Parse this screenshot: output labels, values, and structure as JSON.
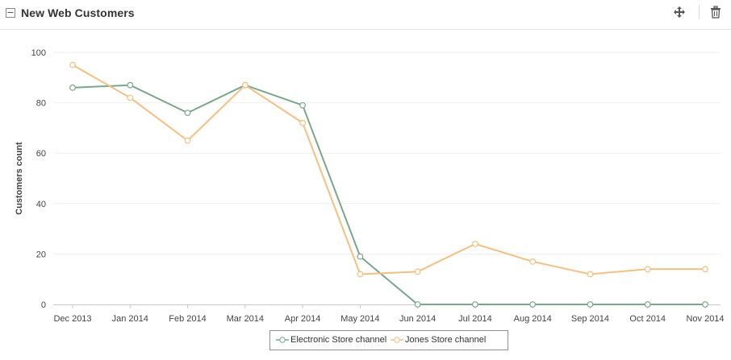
{
  "header": {
    "title": "New Web Customers",
    "collapse_label": "−",
    "move_icon": "move-arrows-icon",
    "delete_icon": "trash-icon"
  },
  "chart_data": {
    "type": "line",
    "title": "",
    "xlabel": "",
    "ylabel": "Customers count",
    "categories": [
      "Dec 2013",
      "Jan 2014",
      "Feb 2014",
      "Mar 2014",
      "Apr 2014",
      "May 2014",
      "Jun 2014",
      "Jul 2014",
      "Aug 2014",
      "Sep 2014",
      "Oct 2014",
      "Nov 2014"
    ],
    "ylim": [
      0,
      100
    ],
    "yticks": [
      0,
      20,
      40,
      60,
      80,
      100
    ],
    "grid": true,
    "legend_position": "bottom-center",
    "series": [
      {
        "name": "Electronic Store channel",
        "color": "#79a78b",
        "values": [
          86,
          87,
          76,
          87,
          79,
          19,
          0,
          0,
          0,
          0,
          0,
          0
        ]
      },
      {
        "name": "Jones Store channel",
        "color": "#f5c07e",
        "values": [
          95,
          82,
          65,
          87,
          72,
          12,
          13,
          24,
          17,
          12,
          14,
          14
        ]
      }
    ]
  }
}
